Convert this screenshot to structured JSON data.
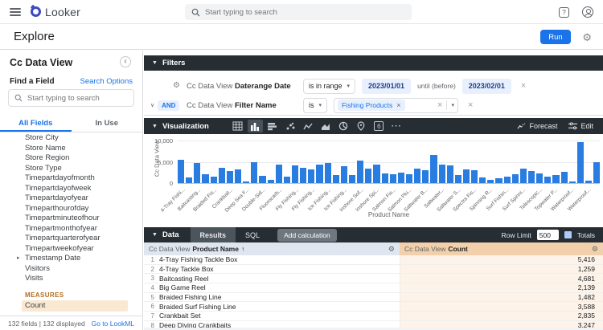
{
  "topbar": {
    "logo_text": "Looker",
    "search_placeholder": "Start typing to search"
  },
  "explore_bar": {
    "title": "Explore",
    "run_label": "Run"
  },
  "sidebar": {
    "view_title": "Cc Data View",
    "find_label": "Find a Field",
    "search_options_label": "Search Options",
    "search_placeholder": "Start typing to search",
    "tabs": [
      {
        "label": "All Fields"
      },
      {
        "label": "In Use"
      }
    ],
    "fields": [
      "Store City",
      "Store Name",
      "Store Region",
      "Store Type",
      "Timepartdayofmonth",
      "Timepartdayofweek",
      "Timepartdayofyear",
      "Timeparthourofday",
      "Timepartminuteofhour",
      "Timepartmonthofyear",
      "Timepartquarterofyear",
      "Timepartweekofyear",
      "Timestamp Date",
      "Visitors",
      "Visits"
    ],
    "expandable_field": "Timestamp Date",
    "measures_label": "MEASURES",
    "measures": [
      "Count"
    ],
    "footer": {
      "summary": "132 fields | 132 displayed",
      "lookml_label": "Go to LookML"
    }
  },
  "filters": {
    "header": "Filters",
    "rows": [
      {
        "field_prefix": "Cc Data View",
        "field_name": "Daterange Date",
        "operator": "is in range",
        "from": "2023/01/01",
        "until_label": "until (before)",
        "to": "2023/02/01"
      },
      {
        "connector": "AND",
        "field_prefix": "Cc Data View",
        "field_name": "Filter Name",
        "operator": "is",
        "chip": "Fishing Products"
      }
    ]
  },
  "visualization": {
    "header": "Visualization",
    "icon_names": [
      "table",
      "column",
      "bar",
      "scatter",
      "line",
      "area",
      "pie",
      "map",
      "single-value",
      "more"
    ],
    "forecast_label": "Forecast",
    "edit_label": "Edit"
  },
  "chart_data": {
    "type": "bar",
    "title": "",
    "xlabel": "Product Name",
    "ylabel": "Cc Data View",
    "ylim": [
      0,
      10000
    ],
    "yticks": [
      10000,
      5000,
      0
    ],
    "ytick_labels": [
      "10,000",
      "5,000",
      "0"
    ],
    "grid": true,
    "legend": false,
    "bar_color": "#2a7de0",
    "label_every": 2,
    "x_tick_labels": [
      "4-Tray Fishi...",
      "Baitcasting...",
      "Braided Fis...",
      "Crankbait...",
      "Deep Sea F...",
      "Double-Sid...",
      "Fluorocarb...",
      "Fly Fishing...",
      "Fly Fishing...",
      "Ice Fishing...",
      "Ice Fishing...",
      "Inshore Sof...",
      "Inshore Spi...",
      "Salmon Fis...",
      "Salmon Plu...",
      "Saltwater B...",
      "Saltwater...",
      "Saltwater S...",
      "Spectra Fis...",
      "Spinning R...",
      "Surf Fishin...",
      "Surf Spinni...",
      "Telescopic...",
      "Topwater P...",
      "Waterproof...",
      "Waterproof..."
    ],
    "values": [
      5416,
      1259,
      4681,
      2139,
      1482,
      3588,
      2835,
      3247,
      420,
      4950,
      1700,
      830,
      4420,
      1500,
      4230,
      3620,
      3300,
      4330,
      4700,
      1820,
      4020,
      1880,
      5380,
      3470,
      4260,
      2330,
      2050,
      2480,
      2160,
      3470,
      3030,
      6650,
      4380,
      4180,
      1850,
      3200,
      3080,
      1260,
      820,
      1140,
      1530,
      2040,
      3470,
      2900,
      2280,
      1480,
      1830,
      2680,
      330,
      9700,
      620,
      4850
    ]
  },
  "data_section": {
    "header": "Data",
    "tabs": [
      {
        "label": "Results"
      },
      {
        "label": "SQL"
      }
    ],
    "add_calculation_label": "Add calculation",
    "row_limit_label": "Row Limit",
    "row_limit_value": "500",
    "totals_label": "Totals",
    "table": {
      "columns": [
        {
          "prefix": "Cc Data View",
          "name": "Product Name",
          "sort": "↑"
        },
        {
          "prefix": "Cc Data View",
          "name": "Count"
        }
      ],
      "rows": [
        {
          "num": "1",
          "name": "4-Tray Fishing Tackle Box",
          "count": "5,416"
        },
        {
          "num": "2",
          "name": "4-Tray Tackle Box",
          "count": "1,259"
        },
        {
          "num": "3",
          "name": "Baitcasting Reel",
          "count": "4,681"
        },
        {
          "num": "4",
          "name": "Big Game Reel",
          "count": "2,139"
        },
        {
          "num": "5",
          "name": "Braided Fishing Line",
          "count": "1,482"
        },
        {
          "num": "6",
          "name": "Braided Surf Fishing Line",
          "count": "3,588"
        },
        {
          "num": "7",
          "name": "Crankbait Set",
          "count": "2,835"
        },
        {
          "num": "8",
          "name": "Deep Diving Crankbaits",
          "count": "3,247"
        }
      ]
    }
  },
  "icons": {
    "gear": "⚙",
    "close": "×",
    "caret_down": "▾",
    "caret_right": "▸",
    "section_caret": "▼",
    "chevron_down": "∨",
    "collapse": "‹",
    "more": "···",
    "help": "?",
    "single_value_glyph": "6",
    "sort_asc": "↑"
  },
  "colors": {
    "accent_blue": "#1a73e8",
    "bar_blue": "#2a7de0",
    "dark_panel": "#262d33",
    "measure_orange": "#b36d1f",
    "measure_highlight": "#f9e8d2",
    "dimension_header": "#dfe6f0",
    "measure_header": "#f2d0ab",
    "measure_cell": "#fdf3e8",
    "chip_bg": "#e8f0fe"
  }
}
